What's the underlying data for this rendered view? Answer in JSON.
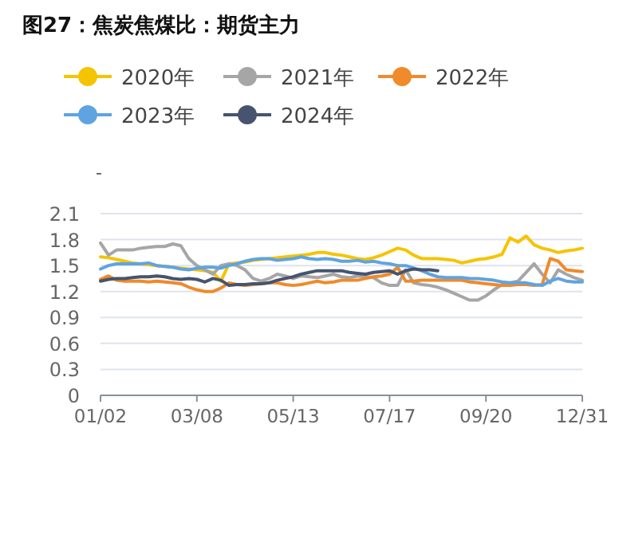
{
  "chart_data": {
    "type": "line",
    "title": "图27：焦炭焦煤比：期货主力",
    "ylabel": "-",
    "categories": [
      "01/02",
      null,
      null,
      null,
      null,
      null,
      null,
      null,
      null,
      null,
      null,
      null,
      "03/08",
      null,
      null,
      null,
      null,
      null,
      null,
      null,
      null,
      null,
      null,
      null,
      "05/13",
      null,
      null,
      null,
      null,
      null,
      null,
      null,
      null,
      null,
      null,
      null,
      "07/17",
      null,
      null,
      null,
      null,
      null,
      null,
      null,
      null,
      null,
      null,
      null,
      "09/20",
      null,
      null,
      null,
      null,
      null,
      null,
      null,
      null,
      null,
      null,
      null,
      "12/31"
    ],
    "series": [
      {
        "name": "2020年",
        "color": "#f5c400",
        "values": [
          1.6,
          1.59,
          1.57,
          1.55,
          1.53,
          1.52,
          1.51,
          1.5,
          1.49,
          1.48,
          1.47,
          1.46,
          1.45,
          1.44,
          1.42,
          1.32,
          1.52,
          1.53,
          1.54,
          1.56,
          1.57,
          1.58,
          1.59,
          1.6,
          1.61,
          1.62,
          1.63,
          1.65,
          1.65,
          1.63,
          1.62,
          1.6,
          1.58,
          1.57,
          1.59,
          1.62,
          1.66,
          1.7,
          1.68,
          1.62,
          1.58,
          1.58,
          1.58,
          1.57,
          1.56,
          1.53,
          1.55,
          1.57,
          1.58,
          1.6,
          1.63,
          1.82,
          1.77,
          1.84,
          1.74,
          1.7,
          1.68,
          1.65,
          1.67,
          1.68,
          1.7
        ]
      },
      {
        "name": "2021年",
        "color": "#a6a6a6",
        "values": [
          1.76,
          1.62,
          1.68,
          1.68,
          1.68,
          1.7,
          1.71,
          1.72,
          1.72,
          1.75,
          1.73,
          1.58,
          1.5,
          1.45,
          1.4,
          1.5,
          1.52,
          1.5,
          1.45,
          1.35,
          1.32,
          1.35,
          1.4,
          1.38,
          1.35,
          1.38,
          1.37,
          1.36,
          1.38,
          1.4,
          1.37,
          1.36,
          1.38,
          1.37,
          1.36,
          1.3,
          1.27,
          1.27,
          1.45,
          1.3,
          1.28,
          1.27,
          1.25,
          1.22,
          1.18,
          1.14,
          1.1,
          1.1,
          1.15,
          1.22,
          1.28,
          1.3,
          1.32,
          1.42,
          1.52,
          1.4,
          1.3,
          1.45,
          1.4,
          1.36,
          1.33
        ]
      },
      {
        "name": "2022年",
        "color": "#f08a2a",
        "values": [
          1.34,
          1.38,
          1.33,
          1.32,
          1.32,
          1.32,
          1.31,
          1.32,
          1.31,
          1.3,
          1.29,
          1.25,
          1.22,
          1.2,
          1.2,
          1.24,
          1.3,
          1.28,
          1.27,
          1.28,
          1.29,
          1.3,
          1.3,
          1.28,
          1.27,
          1.28,
          1.3,
          1.32,
          1.3,
          1.31,
          1.33,
          1.33,
          1.33,
          1.35,
          1.37,
          1.38,
          1.4,
          1.48,
          1.32,
          1.32,
          1.33,
          1.33,
          1.33,
          1.33,
          1.33,
          1.33,
          1.31,
          1.3,
          1.29,
          1.28,
          1.27,
          1.27,
          1.28,
          1.28,
          1.27,
          1.28,
          1.58,
          1.55,
          1.45,
          1.44,
          1.43
        ]
      },
      {
        "name": "2023年",
        "color": "#5fa4e0",
        "values": [
          1.46,
          1.5,
          1.52,
          1.52,
          1.52,
          1.52,
          1.53,
          1.5,
          1.49,
          1.48,
          1.46,
          1.45,
          1.47,
          1.48,
          1.48,
          1.47,
          1.5,
          1.52,
          1.55,
          1.57,
          1.58,
          1.58,
          1.56,
          1.57,
          1.58,
          1.6,
          1.58,
          1.57,
          1.58,
          1.57,
          1.55,
          1.55,
          1.56,
          1.54,
          1.55,
          1.53,
          1.52,
          1.5,
          1.5,
          1.47,
          1.44,
          1.4,
          1.37,
          1.36,
          1.36,
          1.36,
          1.35,
          1.35,
          1.34,
          1.33,
          1.31,
          1.3,
          1.3,
          1.3,
          1.28,
          1.27,
          1.32,
          1.35,
          1.32,
          1.31,
          1.31
        ]
      },
      {
        "name": "2024年",
        "color": "#46546f",
        "values": [
          1.32,
          1.34,
          1.35,
          1.35,
          1.36,
          1.37,
          1.37,
          1.38,
          1.37,
          1.35,
          1.34,
          1.35,
          1.34,
          1.31,
          1.35,
          1.33,
          1.27,
          1.28,
          1.28,
          1.29,
          1.29,
          1.3,
          1.33,
          1.35,
          1.37,
          1.4,
          1.42,
          1.44,
          1.44,
          1.44,
          1.44,
          1.42,
          1.41,
          1.4,
          1.42,
          1.43,
          1.44,
          1.4,
          1.44,
          1.46,
          1.45,
          1.45,
          1.44,
          null,
          null,
          null,
          null,
          null,
          null,
          null,
          null,
          null,
          null,
          null,
          null,
          null,
          null,
          null,
          null,
          null,
          null
        ]
      }
    ],
    "ylim": [
      0,
      2.1
    ],
    "yticks": [
      0,
      0.3,
      0.6,
      0.9,
      1.2,
      1.5,
      1.8,
      2.1
    ],
    "grid": "y",
    "legend": "top",
    "marker": "none",
    "line_style": "solid"
  }
}
